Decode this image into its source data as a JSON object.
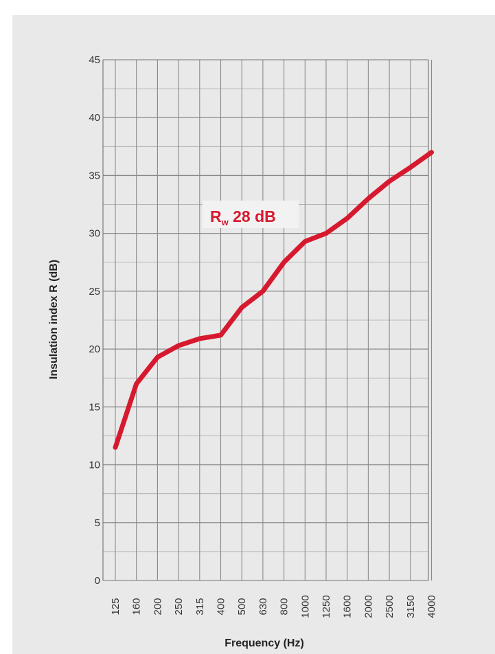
{
  "chart_data": {
    "type": "line",
    "title": "",
    "title_partial": "",
    "xlabel": "Frequency (Hz)",
    "ylabel": "Insulation index R (dB)",
    "x_categories": [
      "125",
      "160",
      "200",
      "250",
      "315",
      "400",
      "500",
      "630",
      "800",
      "1000",
      "1250",
      "1600",
      "2000",
      "2500",
      "3150",
      "4000"
    ],
    "yticks": [
      "0",
      "5",
      "10",
      "15",
      "20",
      "25",
      "30",
      "35",
      "40",
      "45"
    ],
    "ylim": [
      0,
      45
    ],
    "grid": true,
    "series": [
      {
        "name": "",
        "color": "#d7192f",
        "values": [
          11.5,
          17.0,
          19.3,
          20.3,
          20.9,
          21.2,
          23.6,
          25.0,
          27.5,
          29.3,
          30.0,
          31.3,
          33.0,
          34.5,
          35.7,
          37.0
        ]
      }
    ],
    "annotation": {
      "main": "R",
      "sub": "w",
      "rest": " 28 dB",
      "color": "#d7192f"
    }
  }
}
